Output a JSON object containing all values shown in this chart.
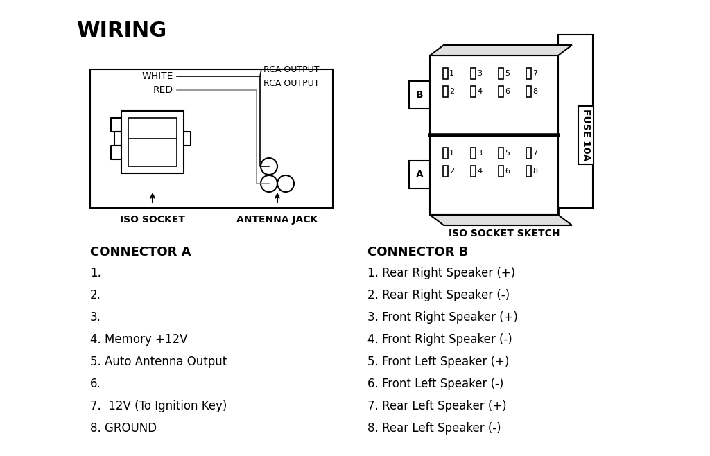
{
  "title": "WIRING",
  "bg_color": "#ffffff",
  "text_color": "#000000",
  "connector_a_title": "CONNECTOR A",
  "connector_a_items": [
    "1.",
    "2.",
    "3.",
    "4. Memory +12V",
    "5. Auto Antenna Output",
    "6.",
    "7.  12V (To Ignition Key)",
    "8. GROUND"
  ],
  "connector_b_title": "CONNECTOR B",
  "connector_b_items": [
    "1. Rear Right Speaker (+)",
    "2. Rear Right Speaker (-)",
    "3. Front Right Speaker (+)",
    "4. Front Right Speaker (-)",
    "5. Front Left Speaker (+)",
    "6. Front Left Speaker (-)",
    "7. Rear Left Speaker (+)",
    "8. Rear Left Speaker (-)"
  ],
  "iso_socket_label": "ISO SOCKET",
  "antenna_jack_label": "ANTENNA JACK",
  "iso_sketch_label": "ISO SOCKET SKETCH",
  "white_label": "WHITE",
  "red_label": "RED",
  "rca_output_label1": "RCA OUTPUT",
  "rca_output_label2": "RCA OUTPUT",
  "fuse_label": "FUSE 10A"
}
